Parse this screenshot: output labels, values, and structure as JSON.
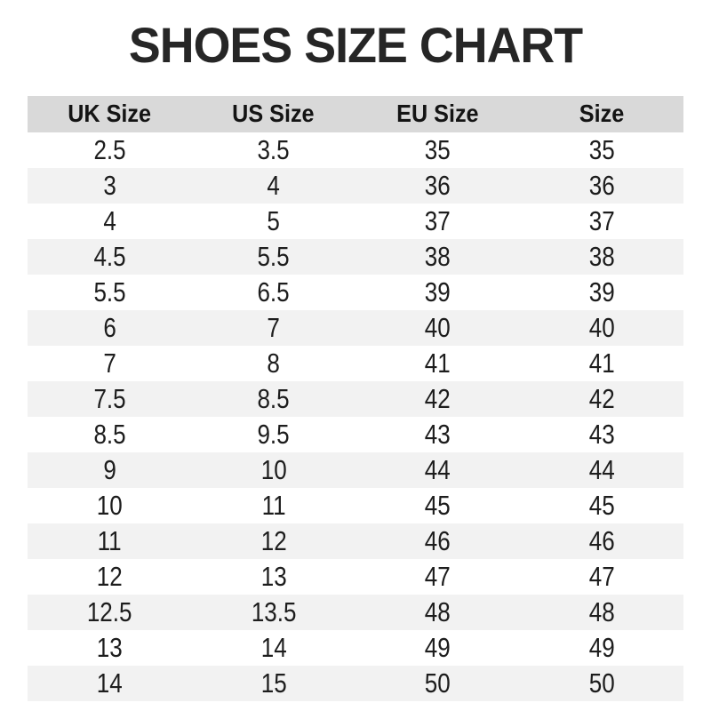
{
  "title": "SHOES SIZE CHART",
  "colors": {
    "header_bg": "#d9d9d9",
    "row_alt_bg": "#f2f2f2",
    "row_bg": "#ffffff",
    "text": "#1d1d1d",
    "title_text": "#262626"
  },
  "table": {
    "columns": [
      "UK Size",
      "US Size",
      "EU Size",
      "Size"
    ],
    "rows": [
      [
        "2.5",
        "3.5",
        "35",
        "35"
      ],
      [
        "3",
        "4",
        "36",
        "36"
      ],
      [
        "4",
        "5",
        "37",
        "37"
      ],
      [
        "4.5",
        "5.5",
        "38",
        "38"
      ],
      [
        "5.5",
        "6.5",
        "39",
        "39"
      ],
      [
        "6",
        "7",
        "40",
        "40"
      ],
      [
        "7",
        "8",
        "41",
        "41"
      ],
      [
        "7.5",
        "8.5",
        "42",
        "42"
      ],
      [
        "8.5",
        "9.5",
        "43",
        "43"
      ],
      [
        "9",
        "10",
        "44",
        "44"
      ],
      [
        "10",
        "11",
        "45",
        "45"
      ],
      [
        "11",
        "12",
        "46",
        "46"
      ],
      [
        "12",
        "13",
        "47",
        "47"
      ],
      [
        "12.5",
        "13.5",
        "48",
        "48"
      ],
      [
        "13",
        "14",
        "49",
        "49"
      ],
      [
        "14",
        "15",
        "50",
        "50"
      ]
    ]
  },
  "chart_data": {
    "type": "table",
    "title": "SHOES SIZE CHART",
    "columns": [
      "UK Size",
      "US Size",
      "EU Size",
      "Size"
    ],
    "rows": [
      [
        "2.5",
        "3.5",
        "35",
        "35"
      ],
      [
        "3",
        "4",
        "36",
        "36"
      ],
      [
        "4",
        "5",
        "37",
        "37"
      ],
      [
        "4.5",
        "5.5",
        "38",
        "38"
      ],
      [
        "5.5",
        "6.5",
        "39",
        "39"
      ],
      [
        "6",
        "7",
        "40",
        "40"
      ],
      [
        "7",
        "8",
        "41",
        "41"
      ],
      [
        "7.5",
        "8.5",
        "42",
        "42"
      ],
      [
        "8.5",
        "9.5",
        "43",
        "43"
      ],
      [
        "9",
        "10",
        "44",
        "44"
      ],
      [
        "10",
        "11",
        "45",
        "45"
      ],
      [
        "11",
        "12",
        "46",
        "46"
      ],
      [
        "12",
        "13",
        "47",
        "47"
      ],
      [
        "12.5",
        "13.5",
        "48",
        "48"
      ],
      [
        "13",
        "14",
        "49",
        "49"
      ],
      [
        "14",
        "15",
        "50",
        "50"
      ]
    ],
    "layout": {
      "header_background": "#d9d9d9",
      "zebra_striping": true,
      "stripe_background": "#f2f2f2",
      "grid": false
    }
  }
}
